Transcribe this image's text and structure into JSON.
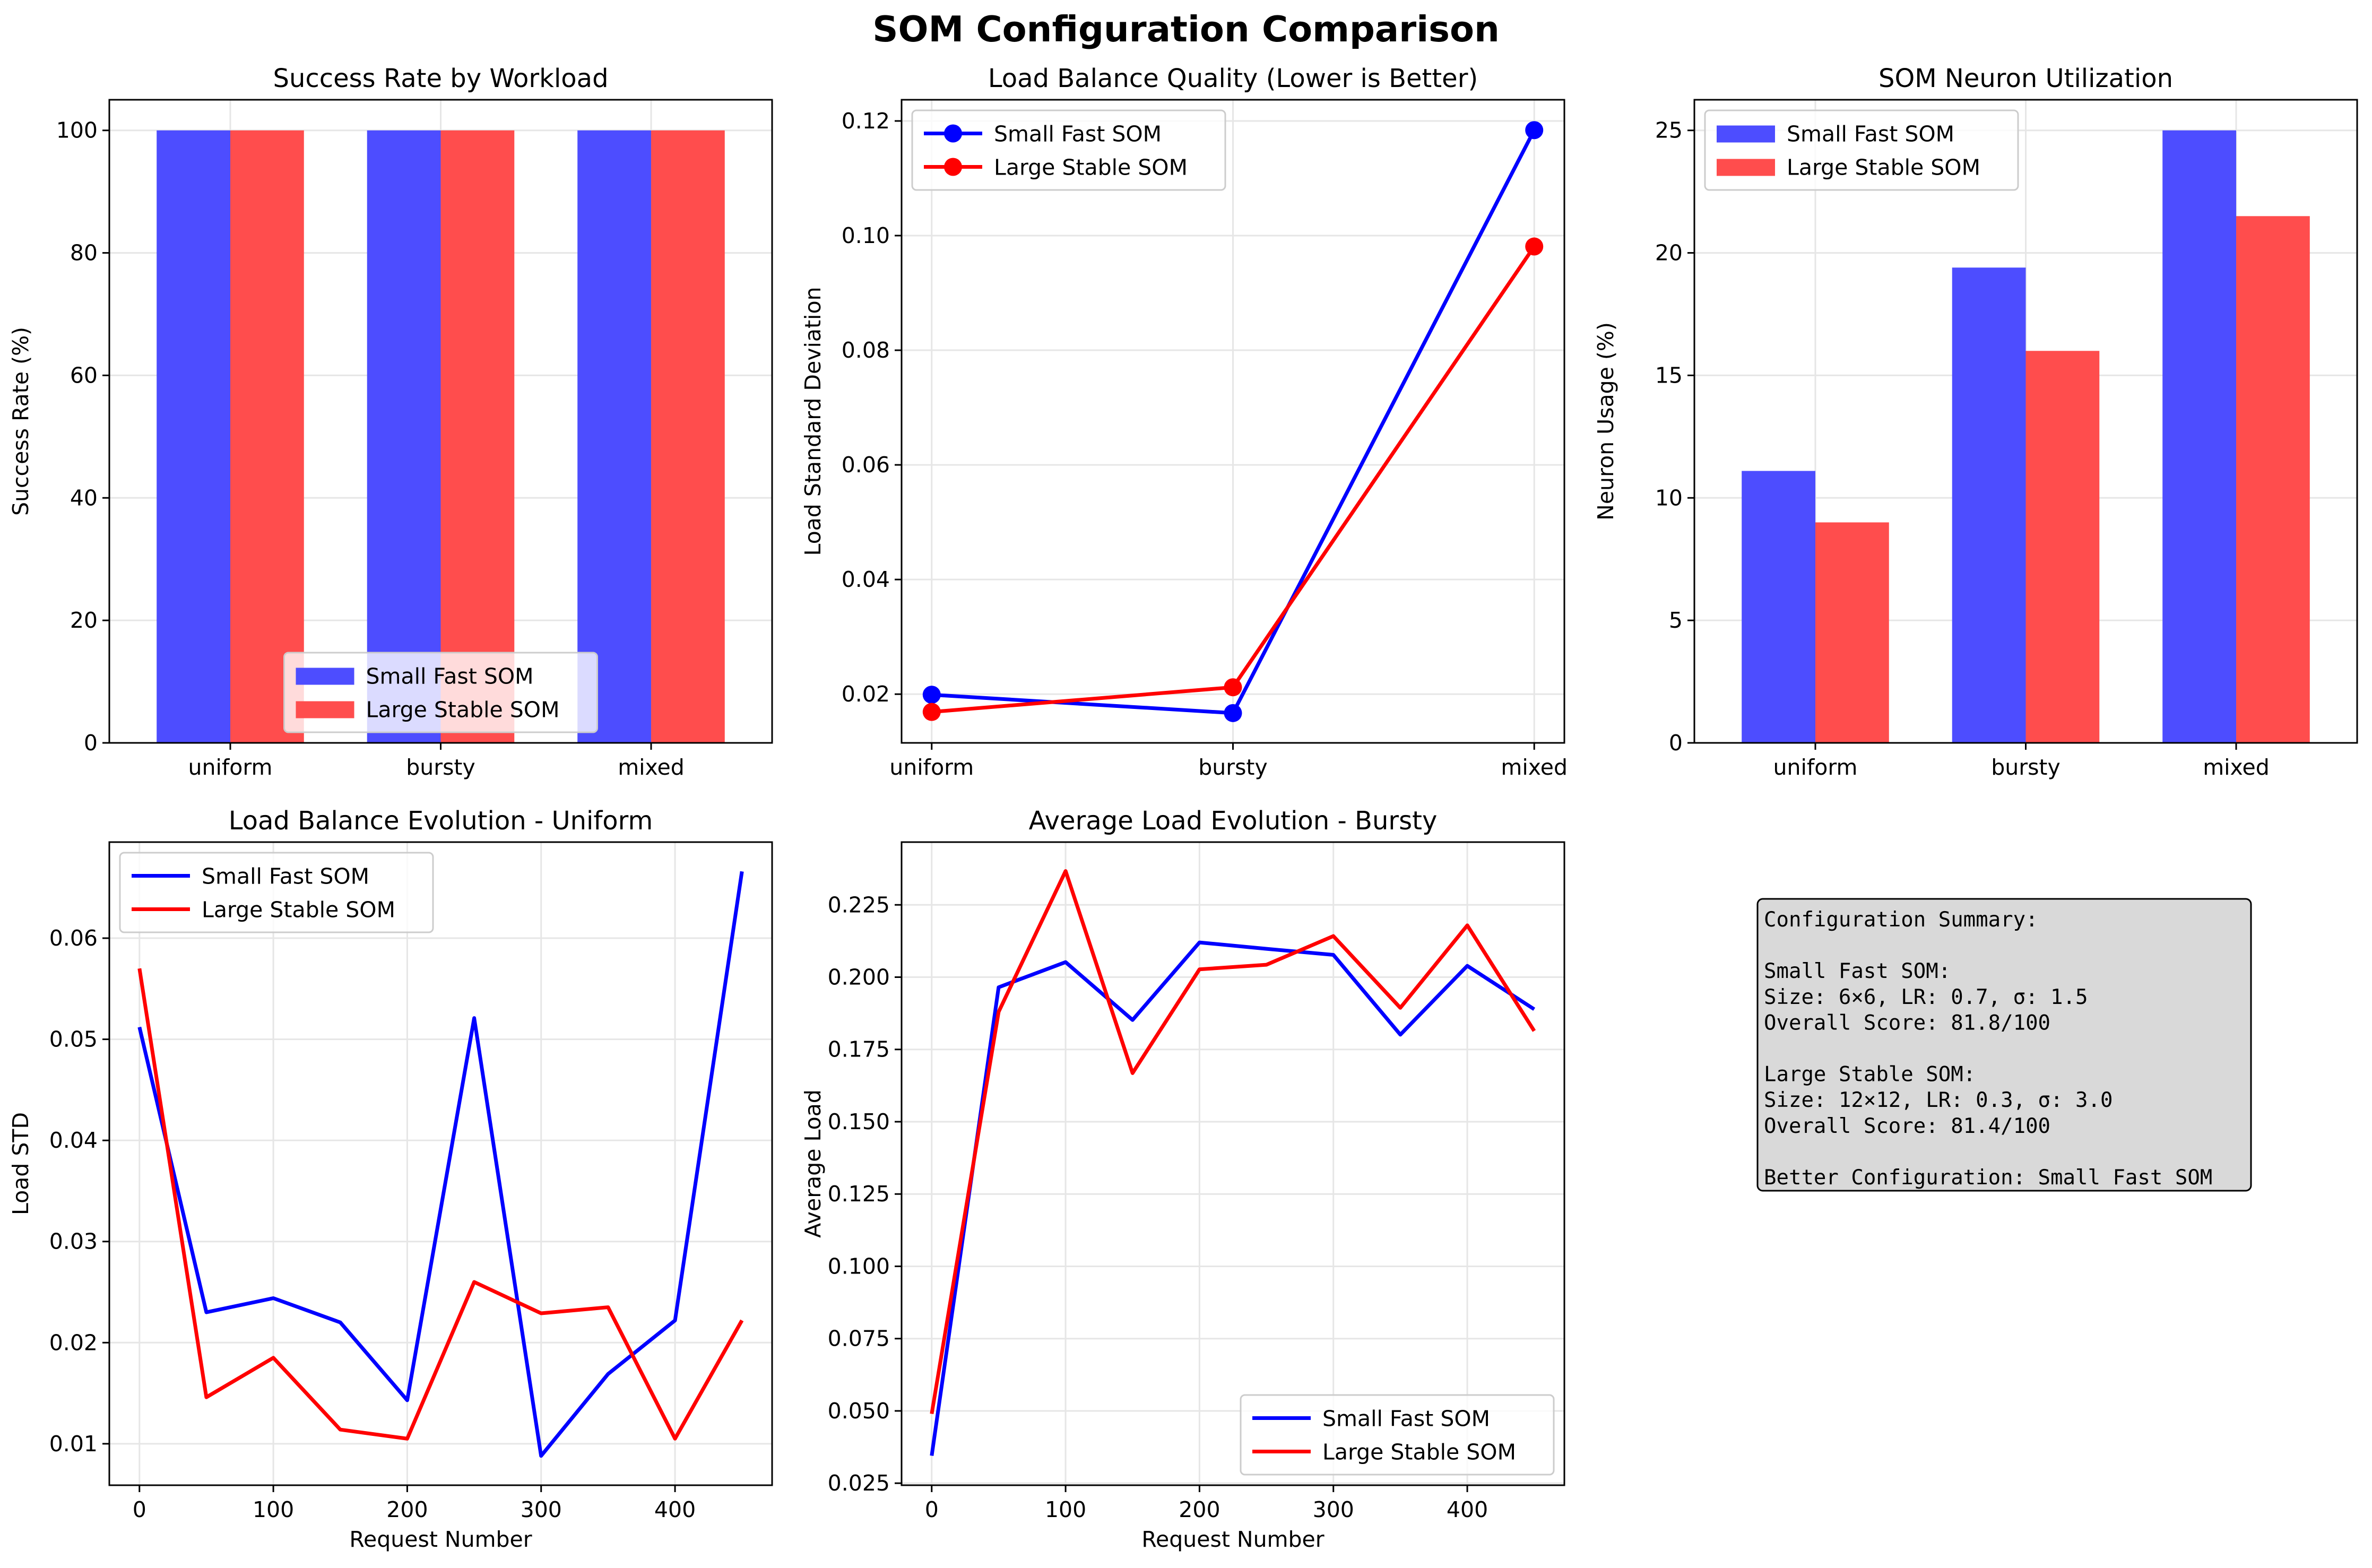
{
  "figure": {
    "title": "SOM Configuration Comparison"
  },
  "colors": {
    "small": "#0000ff",
    "large": "#ff0000",
    "small_bar": "#4d4dff",
    "large_bar": "#ff4d4d",
    "grid": "#e6e6e6",
    "summary_bg": "#d9d9d9"
  },
  "chart_data": [
    {
      "id": "success",
      "type": "bar",
      "title": "Success Rate by Workload",
      "xlabel": "",
      "ylabel": "Success Rate (%)",
      "categories": [
        "uniform",
        "bursty",
        "mixed"
      ],
      "series": [
        {
          "name": "Small Fast SOM",
          "values": [
            100,
            100,
            100
          ]
        },
        {
          "name": "Large Stable SOM",
          "values": [
            100,
            100,
            100
          ]
        }
      ],
      "ylim": [
        0,
        105
      ],
      "yticks": [
        0,
        20,
        40,
        60,
        80,
        100
      ],
      "legend": "lower-center",
      "grid": true
    },
    {
      "id": "loadbal",
      "type": "line",
      "title": "Load Balance Quality (Lower is Better)",
      "xlabel": "",
      "ylabel": "Load Standard Deviation",
      "categories": [
        "uniform",
        "bursty",
        "mixed"
      ],
      "series": [
        {
          "name": "Small Fast SOM",
          "values": [
            0.0199,
            0.0167,
            0.1184
          ]
        },
        {
          "name": "Large Stable SOM",
          "values": [
            0.0169,
            0.0212,
            0.0981
          ]
        }
      ],
      "ylim": [
        0.0115,
        0.1237
      ],
      "yticks": [
        0.02,
        0.04,
        0.06,
        0.08,
        0.1,
        0.12
      ],
      "ytick_labels": [
        "0.02",
        "0.04",
        "0.06",
        "0.08",
        "0.10",
        "0.12"
      ],
      "markers": true,
      "legend": "top-left",
      "grid": true
    },
    {
      "id": "neuron",
      "type": "bar",
      "title": "SOM Neuron Utilization",
      "xlabel": "",
      "ylabel": "Neuron Usage (%)",
      "categories": [
        "uniform",
        "bursty",
        "mixed"
      ],
      "series": [
        {
          "name": "Small Fast SOM",
          "values": [
            11.1,
            19.4,
            25.0
          ]
        },
        {
          "name": "Large Stable SOM",
          "values": [
            9.0,
            16.0,
            21.5
          ]
        }
      ],
      "ylim": [
        0,
        26.25
      ],
      "yticks": [
        0,
        5,
        10,
        15,
        20,
        25
      ],
      "legend": "top-left",
      "grid": true
    },
    {
      "id": "evo_uniform",
      "type": "line",
      "title": "Load Balance Evolution - Uniform",
      "xlabel": "Request Number",
      "ylabel": "Load STD",
      "x": [
        0,
        50,
        100,
        150,
        200,
        250,
        300,
        350,
        400,
        450
      ],
      "series": [
        {
          "name": "Small Fast SOM",
          "values": [
            0.0512,
            0.023,
            0.0244,
            0.022,
            0.0143,
            0.0521,
            0.0088,
            0.0169,
            0.0222,
            0.0666
          ]
        },
        {
          "name": "Large Stable SOM",
          "values": [
            0.057,
            0.0146,
            0.0185,
            0.0114,
            0.0105,
            0.026,
            0.0229,
            0.0235,
            0.0105,
            0.0222
          ]
        }
      ],
      "xlim": [
        -22.5,
        472.5
      ],
      "ylim": [
        0.0059,
        0.0695
      ],
      "xticks": [
        0,
        100,
        200,
        300,
        400
      ],
      "yticks": [
        0.01,
        0.02,
        0.03,
        0.04,
        0.05,
        0.06
      ],
      "ytick_labels": [
        "0.01",
        "0.02",
        "0.03",
        "0.04",
        "0.05",
        "0.06"
      ],
      "legend": "top-left",
      "grid": true
    },
    {
      "id": "evo_bursty",
      "type": "line",
      "title": "Average Load Evolution - Bursty",
      "xlabel": "Request Number",
      "ylabel": "Average Load",
      "x": [
        0,
        50,
        100,
        150,
        200,
        250,
        300,
        350,
        400,
        450
      ],
      "series": [
        {
          "name": "Small Fast SOM",
          "values": [
            0.0345,
            0.1965,
            0.2052,
            0.1852,
            0.212,
            0.2098,
            0.2077,
            0.1801,
            0.2039,
            0.1889
          ]
        },
        {
          "name": "Large Stable SOM",
          "values": [
            0.049,
            0.188,
            0.2367,
            0.1668,
            0.2027,
            0.2043,
            0.2142,
            0.1894,
            0.2179,
            0.1814
          ]
        }
      ],
      "xlim": [
        -22.5,
        472.5
      ],
      "ylim": [
        0.0243,
        0.2467
      ],
      "xticks": [
        0,
        100,
        200,
        300,
        400
      ],
      "yticks": [
        0.025,
        0.05,
        0.075,
        0.1,
        0.125,
        0.15,
        0.175,
        0.2,
        0.225
      ],
      "ytick_labels": [
        "0.025",
        "0.050",
        "0.075",
        "0.100",
        "0.125",
        "0.150",
        "0.175",
        "0.200",
        "0.225"
      ],
      "legend": "bottom-right",
      "grid": true
    }
  ],
  "summary": {
    "lines": [
      "Configuration Summary:",
      "",
      "Small Fast SOM:",
      "  Size: 6×6, LR: 0.7, σ: 1.5",
      "  Overall Score: 81.8/100",
      "",
      "Large Stable SOM:",
      "  Size: 12×12, LR: 0.3, σ: 3.0",
      "  Overall Score: 81.4/100",
      "",
      "Better Configuration: Small Fast SOM"
    ]
  }
}
